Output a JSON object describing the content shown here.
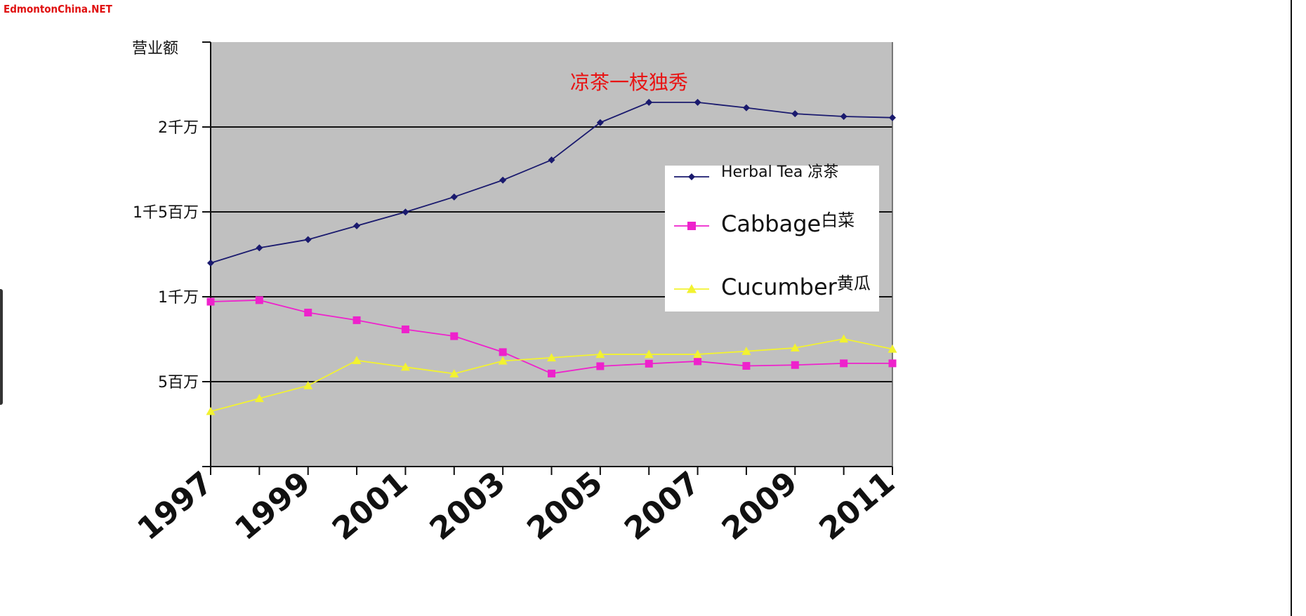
{
  "watermark": "EdmontonChina.NET",
  "chart_data": {
    "type": "line",
    "title": "",
    "annotation": "凉茶一枝独秀",
    "ylabel": "营业额",
    "xlabel": "",
    "ylim": [
      0,
      25000000
    ],
    "yticks": [
      {
        "value": 5000000,
        "label": "5百万"
      },
      {
        "value": 10000000,
        "label": "1千万"
      },
      {
        "value": 15000000,
        "label": "1千5百万"
      },
      {
        "value": 20000000,
        "label": "2千万"
      }
    ],
    "xticks": [
      "1997",
      "1999",
      "2001",
      "2003",
      "2005",
      "2007",
      "2009",
      "2011"
    ],
    "x": [
      1997,
      1998,
      1999,
      2000,
      2001,
      2002,
      2003,
      2004,
      2005,
      2006,
      2007,
      2008,
      2009,
      2010,
      2011
    ],
    "grid": "horizontal",
    "legend_position": "right",
    "plot_background": "#c0c0c0",
    "series": [
      {
        "name": "Herbal Tea 凉茶",
        "legend_main": "Herbal Tea ",
        "legend_suffix": "凉茶",
        "color": "#1a1a6e",
        "marker": "diamond",
        "values": [
          11990000,
          12880000,
          13370000,
          14180000,
          14990000,
          15880000,
          16870000,
          18060000,
          20260000,
          21450000,
          21450000,
          21130000,
          20780000,
          20620000,
          20550000
        ]
      },
      {
        "name": "Cabbage 白菜",
        "legend_main": "Cabbage",
        "legend_suffix": "白菜",
        "color": "#ee22cc",
        "marker": "square",
        "values": [
          9710000,
          9800000,
          9070000,
          8620000,
          8080000,
          7680000,
          6740000,
          5480000,
          5910000,
          6060000,
          6200000,
          5930000,
          5980000,
          6080000,
          6080000
        ]
      },
      {
        "name": "Cucumber黄瓜",
        "legend_main": "Cucumber",
        "legend_suffix": "黄瓜",
        "color": "#f2f230",
        "marker": "triangle",
        "values": [
          3250000,
          4010000,
          4770000,
          6250000,
          5860000,
          5470000,
          6220000,
          6410000,
          6610000,
          6610000,
          6610000,
          6790000,
          6990000,
          7520000,
          6920000
        ]
      }
    ]
  }
}
